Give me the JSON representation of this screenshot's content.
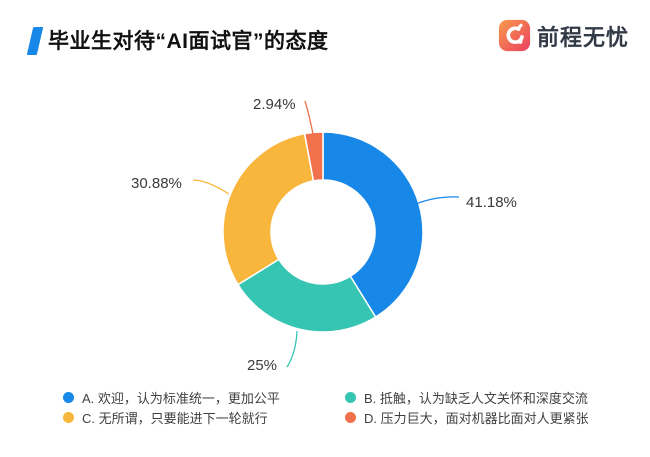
{
  "header": {
    "title": "毕业生对待“AI面试官”的态度",
    "logo_text": "前程无忧",
    "accent_color": "#1787e8",
    "logo_gradient_start": "#f79b4c",
    "logo_gradient_end": "#eb4060"
  },
  "chart_data": {
    "type": "pie",
    "subtype": "donut",
    "title": "毕业生对待“AI面试官”的态度",
    "start_angle_deg": 0,
    "clockwise": true,
    "legend_position": "bottom",
    "slices": [
      {
        "id": "A",
        "legend": "A. 欢迎，认为标准统一，更加公平",
        "value": 41.18,
        "pct_label": "41.18%",
        "color": "#1787e8"
      },
      {
        "id": "B",
        "legend": "B. 抵触，认为缺乏人文关怀和深度交流",
        "value": 25,
        "pct_label": "25%",
        "color": "#36c4b3"
      },
      {
        "id": "C",
        "legend": "C. 无所谓，只要能进下一轮就行",
        "value": 30.88,
        "pct_label": "30.88%",
        "color": "#f9b63d"
      },
      {
        "id": "D",
        "legend": "D. 压力巨大，面对机器比面对人更紧张",
        "value": 2.94,
        "pct_label": "2.94%",
        "color": "#f0714b"
      }
    ]
  }
}
